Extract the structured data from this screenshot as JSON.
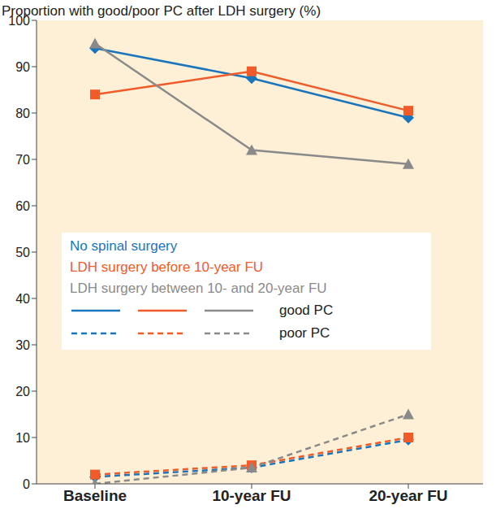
{
  "chart_data": {
    "type": "line",
    "title": "Proportion with good/poor PC after LDH surgery (%)",
    "categories": [
      "Baseline",
      "10-year FU",
      "20-year FU"
    ],
    "ylim": [
      0,
      100
    ],
    "yticks": [
      0,
      10,
      20,
      30,
      40,
      50,
      60,
      70,
      80,
      90,
      100
    ],
    "grid": false,
    "legend": "center",
    "series": [
      {
        "name": "No spinal surgery",
        "color": "#1b75bc",
        "marker": "diamond",
        "line_style": "solid",
        "values": [
          94,
          87.5,
          79
        ]
      },
      {
        "name": "LDH surgery before 10-year FU",
        "color": "#f15a29",
        "marker": "square",
        "line_style": "solid",
        "values": [
          84,
          89,
          80.5
        ]
      },
      {
        "name": "LDH surgery between 10- and 20-year FU",
        "color": "#8a8a8a",
        "marker": "triangle",
        "line_style": "solid",
        "values": [
          95,
          72,
          69
        ]
      },
      {
        "name": "No spinal surgery",
        "color": "#1b75bc",
        "marker": "diamond",
        "line_style": "dashed",
        "values": [
          1.5,
          3.5,
          9.5
        ]
      },
      {
        "name": "LDH surgery before 10-year FU",
        "color": "#f15a29",
        "marker": "square",
        "line_style": "dashed",
        "values": [
          2,
          4,
          10
        ]
      },
      {
        "name": "LDH surgery between 10- and 20-year FU",
        "color": "#8a8a8a",
        "marker": "triangle",
        "line_style": "dashed",
        "values": [
          0,
          3.5,
          15
        ]
      }
    ],
    "line_style_labels": [
      {
        "line_style": "solid",
        "label": "good PC"
      },
      {
        "line_style": "dashed",
        "label": "poor PC"
      }
    ]
  }
}
